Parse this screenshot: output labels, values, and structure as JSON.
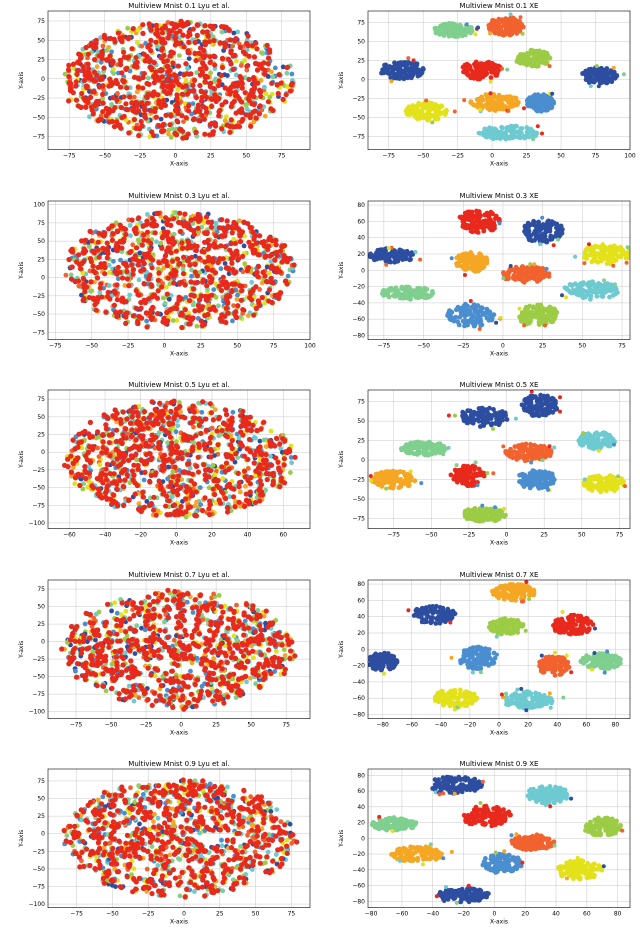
{
  "colors": {
    "dark_blue": "#2d4ea0",
    "red": "#e8291c",
    "orange": "#f5a623",
    "yellow": "#e3e21a",
    "light_green": "#9ccc45",
    "mint": "#7fcf8f",
    "cyan": "#6ccad0",
    "mid_blue": "#4a8ed0",
    "orange_red": "#f2622e"
  },
  "chart_data": [
    {
      "type": "scatter",
      "title": "Multiview Mnist 0.1 Lyu et al.",
      "xlabel": "X-axis",
      "ylabel": "Y-axis",
      "xlim": [
        -90,
        95
      ],
      "ylim": [
        -92,
        88
      ],
      "xticks": [
        -75,
        -50,
        -25,
        0,
        25,
        50,
        75
      ],
      "yticks": [
        -75,
        -50,
        -25,
        0,
        25,
        50,
        75
      ],
      "grid": true,
      "kind": "mixed"
    },
    {
      "type": "scatter",
      "title": "Multiview Mnist 0.1 XE",
      "xlabel": "X-axis",
      "ylabel": "Y-axis",
      "xlim": [
        -90,
        100
      ],
      "ylim": [
        -92,
        90
      ],
      "xticks": [
        -75,
        -50,
        -25,
        0,
        25,
        50,
        75,
        100
      ],
      "yticks": [
        -75,
        -50,
        -25,
        0,
        25,
        50,
        75
      ],
      "grid": true,
      "kind": "clusters",
      "series": [
        {
          "color": "dark_blue",
          "cx": -65,
          "cy": 12,
          "rx": 16,
          "ry": 12
        },
        {
          "color": "mint",
          "cx": -28,
          "cy": 65,
          "rx": 14,
          "ry": 9
        },
        {
          "color": "orange_red",
          "cx": 10,
          "cy": 70,
          "rx": 13,
          "ry": 12
        },
        {
          "color": "red",
          "cx": -8,
          "cy": 12,
          "rx": 15,
          "ry": 12
        },
        {
          "color": "light_green",
          "cx": 30,
          "cy": 28,
          "rx": 13,
          "ry": 11
        },
        {
          "color": "dark_blue",
          "cx": 78,
          "cy": 5,
          "rx": 13,
          "ry": 11
        },
        {
          "color": "orange",
          "cx": 2,
          "cy": -30,
          "rx": 18,
          "ry": 11
        },
        {
          "color": "mid_blue",
          "cx": 35,
          "cy": -30,
          "rx": 10,
          "ry": 12
        },
        {
          "color": "yellow",
          "cx": -48,
          "cy": -42,
          "rx": 15,
          "ry": 12
        },
        {
          "color": "cyan",
          "cx": 12,
          "cy": -70,
          "rx": 22,
          "ry": 9
        }
      ]
    },
    {
      "type": "scatter",
      "title": "Multiview Mnist 0.3 Lyu et al.",
      "xlabel": "X-axis",
      "ylabel": "Y-axis",
      "xlim": [
        -80,
        100
      ],
      "ylim": [
        -85,
        105
      ],
      "xticks": [
        -75,
        -50,
        -25,
        0,
        25,
        50,
        75,
        100
      ],
      "yticks": [
        -75,
        -50,
        -25,
        0,
        25,
        50,
        75,
        100
      ],
      "grid": true,
      "kind": "mixed"
    },
    {
      "type": "scatter",
      "title": "Multiview Mnist 0.3 XE",
      "xlabel": "X-axis",
      "ylabel": "Y-axis",
      "xlim": [
        -85,
        80
      ],
      "ylim": [
        -85,
        85
      ],
      "xticks": [
        -75,
        -50,
        -25,
        0,
        25,
        50,
        75
      ],
      "yticks": [
        -80,
        -60,
        -40,
        -20,
        0,
        20,
        40,
        60,
        80
      ],
      "grid": true,
      "kind": "clusters",
      "series": [
        {
          "color": "red",
          "cx": -15,
          "cy": 60,
          "rx": 13,
          "ry": 14
        },
        {
          "color": "dark_blue",
          "cx": 25,
          "cy": 48,
          "rx": 13,
          "ry": 14
        },
        {
          "color": "dark_blue",
          "cx": -70,
          "cy": 18,
          "rx": 14,
          "ry": 9
        },
        {
          "color": "orange",
          "cx": -20,
          "cy": 10,
          "rx": 11,
          "ry": 12
        },
        {
          "color": "orange_red",
          "cx": 15,
          "cy": -5,
          "rx": 16,
          "ry": 10
        },
        {
          "color": "yellow",
          "cx": 65,
          "cy": 20,
          "rx": 15,
          "ry": 12
        },
        {
          "color": "mint",
          "cx": -60,
          "cy": -28,
          "rx": 17,
          "ry": 8
        },
        {
          "color": "cyan",
          "cx": 55,
          "cy": -25,
          "rx": 18,
          "ry": 11
        },
        {
          "color": "mid_blue",
          "cx": -20,
          "cy": -55,
          "rx": 15,
          "ry": 14
        },
        {
          "color": "light_green",
          "cx": 22,
          "cy": -55,
          "rx": 13,
          "ry": 13
        }
      ]
    },
    {
      "type": "scatter",
      "title": "Multiview Mnist 0.5 Lyu et al.",
      "xlabel": "X-axis",
      "ylabel": "Y-axis",
      "xlim": [
        -72,
        75
      ],
      "ylim": [
        -108,
        88
      ],
      "xticks": [
        -60,
        -40,
        -20,
        0,
        20,
        40,
        60
      ],
      "yticks": [
        -100,
        -75,
        -50,
        -25,
        0,
        25,
        50,
        75
      ],
      "grid": true,
      "kind": "mixed"
    },
    {
      "type": "scatter",
      "title": "Multiview Mnist 0.5 XE",
      "xlabel": "X-axis",
      "ylabel": "Y-axis",
      "xlim": [
        -92,
        82
      ],
      "ylim": [
        -88,
        90
      ],
      "xticks": [
        -75,
        -50,
        -25,
        0,
        25,
        50,
        75
      ],
      "yticks": [
        -75,
        -50,
        -25,
        0,
        25,
        50,
        75
      ],
      "grid": true,
      "kind": "clusters",
      "series": [
        {
          "color": "dark_blue",
          "cx": -15,
          "cy": 55,
          "rx": 17,
          "ry": 12
        },
        {
          "color": "dark_blue",
          "cx": 22,
          "cy": 70,
          "rx": 12,
          "ry": 14
        },
        {
          "color": "mint",
          "cx": -55,
          "cy": 15,
          "rx": 15,
          "ry": 9
        },
        {
          "color": "orange_red",
          "cx": 15,
          "cy": 10,
          "rx": 16,
          "ry": 11
        },
        {
          "color": "cyan",
          "cx": 60,
          "cy": 25,
          "rx": 12,
          "ry": 11
        },
        {
          "color": "orange",
          "cx": -75,
          "cy": -25,
          "rx": 15,
          "ry": 11
        },
        {
          "color": "red",
          "cx": -25,
          "cy": -20,
          "rx": 12,
          "ry": 13
        },
        {
          "color": "mid_blue",
          "cx": 20,
          "cy": -25,
          "rx": 13,
          "ry": 12
        },
        {
          "color": "yellow",
          "cx": 65,
          "cy": -30,
          "rx": 14,
          "ry": 11
        },
        {
          "color": "light_green",
          "cx": -15,
          "cy": -70,
          "rx": 15,
          "ry": 9
        }
      ]
    },
    {
      "type": "scatter",
      "title": "Multiview Mnist 0.7 Lyu et al.",
      "xlabel": "X-axis",
      "ylabel": "Y-axis",
      "xlim": [
        -95,
        92
      ],
      "ylim": [
        -110,
        88
      ],
      "xticks": [
        -75,
        -50,
        -25,
        0,
        25,
        50,
        75
      ],
      "yticks": [
        -100,
        -75,
        -50,
        -25,
        0,
        25,
        50,
        75
      ],
      "grid": true,
      "kind": "mixed"
    },
    {
      "type": "scatter",
      "title": "Multiview Mnist 0.7 XE",
      "xlabel": "X-axis",
      "ylabel": "Y-axis",
      "xlim": [
        -90,
        90
      ],
      "ylim": [
        -85,
        85
      ],
      "xticks": [
        -80,
        -60,
        -40,
        -20,
        0,
        20,
        40,
        60,
        80
      ],
      "yticks": [
        -80,
        -60,
        -40,
        -20,
        0,
        20,
        40,
        60,
        80
      ],
      "grid": true,
      "kind": "clusters",
      "series": [
        {
          "color": "orange",
          "cx": 10,
          "cy": 70,
          "rx": 15,
          "ry": 10
        },
        {
          "color": "dark_blue",
          "cx": -45,
          "cy": 42,
          "rx": 15,
          "ry": 11
        },
        {
          "color": "light_green",
          "cx": 5,
          "cy": 28,
          "rx": 12,
          "ry": 10
        },
        {
          "color": "red",
          "cx": 50,
          "cy": 30,
          "rx": 15,
          "ry": 12
        },
        {
          "color": "dark_blue",
          "cx": -80,
          "cy": -15,
          "rx": 10,
          "ry": 11
        },
        {
          "color": "mid_blue",
          "cx": -15,
          "cy": -10,
          "rx": 13,
          "ry": 14
        },
        {
          "color": "orange_red",
          "cx": 38,
          "cy": -20,
          "rx": 11,
          "ry": 12
        },
        {
          "color": "mint",
          "cx": 70,
          "cy": -15,
          "rx": 14,
          "ry": 10
        },
        {
          "color": "yellow",
          "cx": -30,
          "cy": -60,
          "rx": 15,
          "ry": 11
        },
        {
          "color": "cyan",
          "cx": 20,
          "cy": -62,
          "rx": 18,
          "ry": 10
        }
      ]
    },
    {
      "type": "scatter",
      "title": "Multiview Mnist 0.9 Lyu et al.",
      "xlabel": "X-axis",
      "ylabel": "Y-axis",
      "xlim": [
        -95,
        88
      ],
      "ylim": [
        -105,
        92
      ],
      "xticks": [
        -75,
        -50,
        -25,
        0,
        25,
        50,
        75
      ],
      "yticks": [
        -100,
        -75,
        -50,
        -25,
        0,
        25,
        50,
        75
      ],
      "grid": true,
      "kind": "mixed"
    },
    {
      "type": "scatter",
      "title": "Multiview Mnist 0.9 XE",
      "xlabel": "X-axis",
      "ylabel": "Y-axis",
      "xlim": [
        -82,
        88
      ],
      "ylim": [
        -88,
        88
      ],
      "xticks": [
        -80,
        -60,
        -40,
        -20,
        0,
        20,
        40,
        60,
        80
      ],
      "yticks": [
        -80,
        -60,
        -40,
        -20,
        0,
        20,
        40,
        60,
        80
      ],
      "grid": true,
      "kind": "clusters",
      "series": [
        {
          "color": "dark_blue",
          "cx": -25,
          "cy": 68,
          "rx": 17,
          "ry": 11
        },
        {
          "color": "cyan",
          "cx": 35,
          "cy": 55,
          "rx": 14,
          "ry": 11
        },
        {
          "color": "red",
          "cx": -5,
          "cy": 28,
          "rx": 16,
          "ry": 13
        },
        {
          "color": "mint",
          "cx": -65,
          "cy": 18,
          "rx": 15,
          "ry": 8
        },
        {
          "color": "light_green",
          "cx": 70,
          "cy": 15,
          "rx": 12,
          "ry": 12
        },
        {
          "color": "orange_red",
          "cx": 25,
          "cy": -5,
          "rx": 14,
          "ry": 10
        },
        {
          "color": "orange",
          "cx": -50,
          "cy": -20,
          "rx": 17,
          "ry": 10
        },
        {
          "color": "mid_blue",
          "cx": 5,
          "cy": -32,
          "rx": 13,
          "ry": 12
        },
        {
          "color": "yellow",
          "cx": 55,
          "cy": -40,
          "rx": 15,
          "ry": 12
        },
        {
          "color": "dark_blue",
          "cx": -20,
          "cy": -72,
          "rx": 17,
          "ry": 9
        }
      ]
    }
  ]
}
